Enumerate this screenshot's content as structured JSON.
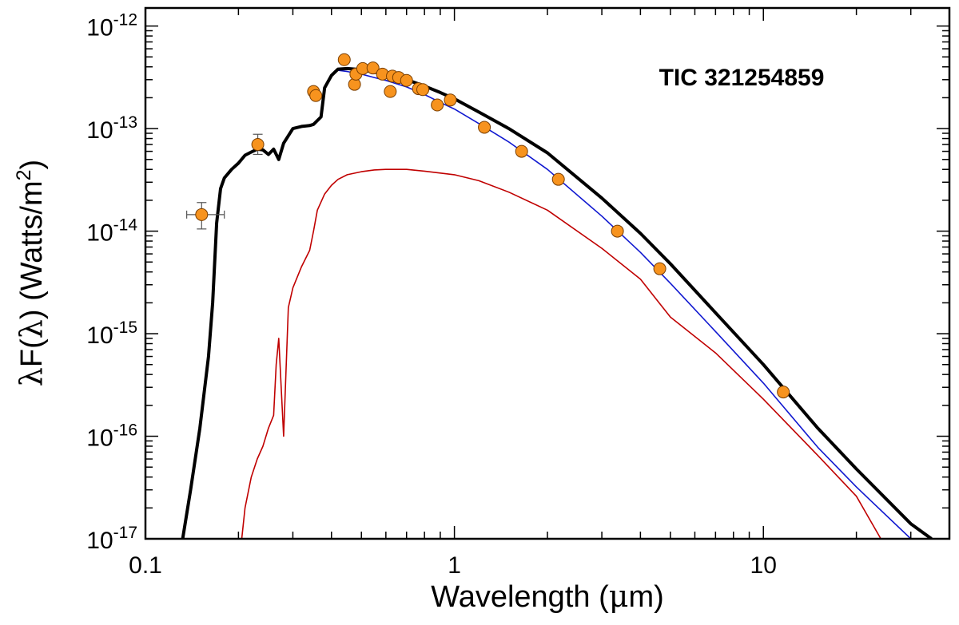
{
  "chart_data": {
    "type": "line",
    "title": "",
    "annotation": "TIC 321254859",
    "xlabel_parts": [
      "Wavelength (",
      "μ",
      "m)"
    ],
    "ylabel_parts": [
      "λ",
      "F(",
      "λ",
      ") (Watts/m",
      "2",
      ")"
    ],
    "xscale": "log",
    "yscale": "log",
    "xlim": [
      0.1,
      40
    ],
    "ylim": [
      1e-17,
      1.5e-12
    ],
    "x_ticks": [
      {
        "value": 0.1,
        "label": "0.1"
      },
      {
        "value": 1,
        "label": "1"
      },
      {
        "value": 10,
        "label": "10"
      }
    ],
    "y_ticks": [
      {
        "value": 1e-12,
        "base": "10",
        "exp": "-12"
      },
      {
        "value": 1e-13,
        "base": "10",
        "exp": "-13"
      },
      {
        "value": 1e-14,
        "base": "10",
        "exp": "-14"
      },
      {
        "value": 1e-15,
        "base": "10",
        "exp": "-15"
      },
      {
        "value": 1e-16,
        "base": "10",
        "exp": "-16"
      },
      {
        "value": 1e-17,
        "base": "10",
        "exp": "-17"
      }
    ],
    "grid": false,
    "colors": {
      "total_model": "#000000",
      "primary_model": "#1018d0",
      "secondary_model": "#c00000",
      "points": "#f7931e",
      "point_edge": "#7a3e00",
      "error_bars": "#555555"
    },
    "series": [
      {
        "name": "total_model",
        "x": [
          0.132,
          0.14,
          0.15,
          0.16,
          0.165,
          0.17,
          0.175,
          0.18,
          0.19,
          0.2,
          0.21,
          0.22,
          0.23,
          0.24,
          0.25,
          0.26,
          0.27,
          0.28,
          0.3,
          0.32,
          0.34,
          0.35,
          0.37,
          0.38,
          0.4,
          0.42,
          0.45,
          0.5,
          0.55,
          0.6,
          0.7,
          0.8,
          0.9,
          1.0,
          1.2,
          1.5,
          2.0,
          3.0,
          4.0,
          5.0,
          7.0,
          10.0,
          15.0,
          20.0,
          30.0,
          35.0
        ],
        "y": [
          1e-17,
          3e-17,
          1.2e-16,
          6e-16,
          2e-15,
          1.2e-14,
          2.6e-14,
          3.3e-14,
          4e-14,
          4.6e-14,
          5.5e-14,
          5.9e-14,
          6.3e-14,
          6.2e-14,
          5.6e-14,
          6.3e-14,
          5e-14,
          7.2e-14,
          1e-13,
          1.05e-13,
          1.07e-13,
          1.1e-13,
          1.3e-13,
          2.5e-13,
          3.3e-13,
          3.8e-13,
          3.85e-13,
          3.75e-13,
          3.55e-13,
          3.4e-13,
          3e-13,
          2.6e-13,
          2.25e-13,
          1.95e-13,
          1.45e-13,
          1e-13,
          5.8e-14,
          2.1e-14,
          9.5e-15,
          4.8e-15,
          1.6e-15,
          5e-16,
          1.2e-16,
          4.8e-17,
          1.4e-17,
          1e-17
        ]
      },
      {
        "name": "primary_model",
        "x": [
          0.132,
          0.14,
          0.15,
          0.16,
          0.165,
          0.17,
          0.175,
          0.18,
          0.19,
          0.2,
          0.21,
          0.22,
          0.23,
          0.24,
          0.25,
          0.26,
          0.27,
          0.28,
          0.3,
          0.32,
          0.34,
          0.35,
          0.37,
          0.38,
          0.4,
          0.42,
          0.45,
          0.5,
          0.55,
          0.6,
          0.7,
          0.8,
          0.9,
          1.0,
          1.2,
          1.5,
          2.0,
          3.0,
          4.0,
          5.0,
          7.0,
          10.0,
          15.0,
          20.0,
          30.0
        ],
        "y": [
          1e-17,
          3e-17,
          1.2e-16,
          6e-16,
          2e-15,
          1.2e-14,
          2.6e-14,
          3.3e-14,
          4e-14,
          4.6e-14,
          5.5e-14,
          5.9e-14,
          6.3e-14,
          6.2e-14,
          5.6e-14,
          6.3e-14,
          5e-14,
          7.2e-14,
          1e-13,
          1.05e-13,
          1.07e-13,
          1.1e-13,
          1.3e-13,
          2.5e-13,
          3.3e-13,
          3.7e-13,
          3.6e-13,
          3.4e-13,
          3.15e-13,
          2.95e-13,
          2.55e-13,
          2.15e-13,
          1.8e-13,
          1.55e-13,
          1.12e-13,
          7.4e-14,
          4e-14,
          1.4e-14,
          6.2e-15,
          3.1e-15,
          1.05e-15,
          3.3e-16,
          7.8e-17,
          3.2e-17,
          1e-17
        ]
      },
      {
        "name": "secondary_model",
        "x": [
          0.205,
          0.21,
          0.22,
          0.23,
          0.24,
          0.25,
          0.26,
          0.265,
          0.27,
          0.28,
          0.29,
          0.3,
          0.32,
          0.34,
          0.35,
          0.36,
          0.38,
          0.4,
          0.42,
          0.45,
          0.5,
          0.55,
          0.6,
          0.7,
          0.8,
          1.0,
          1.2,
          1.5,
          2.0,
          3.0,
          4.0,
          5.0,
          7.0,
          10.0,
          15.0,
          20.0,
          24.0
        ],
        "y": [
          1e-17,
          2e-17,
          4e-17,
          6e-17,
          8e-17,
          1.2e-16,
          1.6e-16,
          5e-16,
          9e-16,
          1e-16,
          1.8e-15,
          2.8e-15,
          4.5e-15,
          6.5e-15,
          1e-14,
          1.6e-14,
          2.3e-14,
          2.8e-14,
          3.2e-14,
          3.55e-14,
          3.8e-14,
          3.95e-14,
          4e-14,
          4e-14,
          3.85e-14,
          3.55e-14,
          3.1e-14,
          2.4e-14,
          1.6e-14,
          6.8e-15,
          3.4e-15,
          1.45e-15,
          6.5e-16,
          2.3e-16,
          6.5e-17,
          2.6e-17,
          1e-17
        ]
      }
    ],
    "points": [
      {
        "x": 0.152,
        "y": 1.45e-14,
        "xerr": [
          0.136,
          0.18
        ],
        "yerr": [
          1.05e-14,
          1.9e-14
        ]
      },
      {
        "x": 0.231,
        "y": 7e-14,
        "yerr": [
          5.6e-14,
          8.8e-14
        ]
      },
      {
        "x": 0.35,
        "y": 2.3e-13
      },
      {
        "x": 0.356,
        "y": 2.1e-13
      },
      {
        "x": 0.44,
        "y": 4.7e-13
      },
      {
        "x": 0.475,
        "y": 2.7e-13
      },
      {
        "x": 0.48,
        "y": 3.4e-13
      },
      {
        "x": 0.505,
        "y": 3.85e-13
      },
      {
        "x": 0.545,
        "y": 3.9e-13
      },
      {
        "x": 0.585,
        "y": 3.4e-13
      },
      {
        "x": 0.62,
        "y": 2.3e-13
      },
      {
        "x": 0.63,
        "y": 3.25e-13
      },
      {
        "x": 0.66,
        "y": 3.15e-13
      },
      {
        "x": 0.7,
        "y": 2.95e-13
      },
      {
        "x": 0.765,
        "y": 2.45e-13
      },
      {
        "x": 0.79,
        "y": 2.4e-13
      },
      {
        "x": 0.88,
        "y": 1.7e-13
      },
      {
        "x": 0.97,
        "y": 1.9e-13
      },
      {
        "x": 1.25,
        "y": 1.03e-13
      },
      {
        "x": 1.65,
        "y": 6e-14
      },
      {
        "x": 2.17,
        "y": 3.2e-14
      },
      {
        "x": 3.37,
        "y": 1e-14
      },
      {
        "x": 4.62,
        "y": 4.3e-15
      },
      {
        "x": 11.6,
        "y": 2.7e-16
      }
    ]
  }
}
